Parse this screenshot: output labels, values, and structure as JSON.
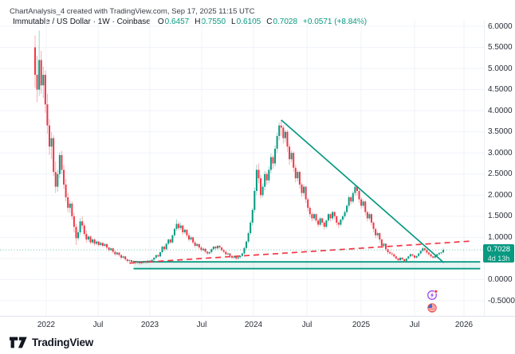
{
  "attribution": "ChartAnalysis_4 created with TradingView.com, Sep 17, 2025 11:15 UTC",
  "legend": {
    "symbol": "Immutable / US Dollar · 1W · Coinbase",
    "o_label": "O",
    "o_value": "0.6457",
    "h_label": "H",
    "h_value": "0.7550",
    "l_label": "L",
    "l_value": "0.6105",
    "c_label": "C",
    "c_value": "0.7028",
    "change": "+0.0571 (+8.84%)"
  },
  "price_label": {
    "price": "0.7028",
    "countdown": "4d 13h"
  },
  "axis": {
    "price_ticks": [
      "6.0000",
      "5.5000",
      "5.0000",
      "4.5000",
      "4.0000",
      "3.5000",
      "3.0000",
      "2.5000",
      "2.0000",
      "1.5000",
      "1.0000",
      "0.5000",
      "0.0000",
      "-0.5000"
    ],
    "time_ticks": [
      "2022",
      "Jul",
      "2023",
      "Jul",
      "2024",
      "Jul",
      "2025",
      "Jul",
      "2026"
    ]
  },
  "logo": {
    "text": "TradingView"
  },
  "icons": {
    "lightning": "lightning-event-icon",
    "us_flag": "us-flag-event-icon"
  },
  "colors": {
    "up": "#089981",
    "down": "#f23645",
    "trendline": "#089981",
    "dashed_line": "#f23645",
    "band": "#089981",
    "price_line": "#089981",
    "price_label_bg": "#089981",
    "grid": "#f0f3fa",
    "purple": "#9c4df0",
    "flag_red": "#ef5350",
    "flag_blue": "#3b6fd6"
  },
  "chart_data": {
    "type": "candlestick",
    "title": "Immutable / US Dollar",
    "interval": "1W",
    "exchange": "Coinbase",
    "ohlc_display": {
      "open": 0.6457,
      "high": 0.755,
      "low": 0.6105,
      "close": 0.7028,
      "change": "+0.0571",
      "change_pct": "+8.84%"
    },
    "x_axis_ticks": [
      "2022",
      "Jul",
      "2023",
      "Jul",
      "2024",
      "Jul",
      "2025",
      "Jul",
      "2026"
    ],
    "y_axis": {
      "min": -0.5,
      "max": 6.0,
      "step": 0.5
    },
    "grid": true,
    "candles": [
      [
        5.5,
        5.78,
        4.55,
        4.85
      ],
      [
        4.85,
        5.3,
        4.2,
        4.5
      ],
      [
        4.5,
        5.9,
        4.35,
        5.2
      ],
      [
        5.2,
        5.42,
        4.4,
        4.6
      ],
      [
        4.6,
        5.05,
        4.3,
        4.85
      ],
      [
        4.85,
        4.95,
        3.95,
        4.15
      ],
      [
        4.15,
        4.4,
        3.45,
        3.65
      ],
      [
        3.65,
        3.8,
        2.95,
        3.15
      ],
      [
        3.15,
        3.5,
        2.85,
        3.35
      ],
      [
        3.35,
        3.42,
        2.45,
        2.55
      ],
      [
        2.55,
        2.8,
        2.05,
        2.2
      ],
      [
        2.2,
        2.6,
        2.08,
        2.5
      ],
      [
        2.5,
        3.02,
        2.4,
        2.95
      ],
      [
        2.95,
        3.05,
        2.5,
        2.6
      ],
      [
        2.6,
        2.72,
        2.15,
        2.25
      ],
      [
        2.25,
        2.38,
        1.85,
        1.95
      ],
      [
        1.95,
        2.05,
        1.6,
        1.7
      ],
      [
        1.7,
        1.88,
        1.58,
        1.8
      ],
      [
        1.8,
        1.85,
        1.42,
        1.5
      ],
      [
        1.5,
        1.58,
        1.12,
        1.25
      ],
      [
        1.25,
        1.32,
        0.82,
        0.98
      ],
      [
        0.98,
        1.18,
        0.92,
        1.12
      ],
      [
        1.12,
        1.46,
        1.06,
        1.38
      ],
      [
        1.38,
        1.5,
        1.2,
        1.28
      ],
      [
        1.28,
        1.33,
        1.02,
        1.08
      ],
      [
        1.08,
        1.16,
        0.88,
        0.95
      ],
      [
        0.95,
        1.06,
        0.9,
        1.02
      ],
      [
        1.02,
        1.05,
        0.84,
        0.88
      ],
      [
        0.88,
        0.99,
        0.84,
        0.95
      ],
      [
        0.95,
        0.98,
        0.8,
        0.85
      ],
      [
        0.85,
        0.93,
        0.81,
        0.9
      ],
      [
        0.9,
        0.92,
        0.78,
        0.82
      ],
      [
        0.82,
        0.9,
        0.79,
        0.87
      ],
      [
        0.87,
        0.89,
        0.76,
        0.8
      ],
      [
        0.8,
        0.87,
        0.77,
        0.84
      ],
      [
        0.84,
        0.86,
        0.72,
        0.76
      ],
      [
        0.76,
        0.79,
        0.66,
        0.7
      ],
      [
        0.7,
        0.76,
        0.67,
        0.74
      ],
      [
        0.74,
        0.76,
        0.62,
        0.66
      ],
      [
        0.66,
        0.69,
        0.56,
        0.6
      ],
      [
        0.6,
        0.66,
        0.57,
        0.64
      ],
      [
        0.64,
        0.66,
        0.54,
        0.58
      ],
      [
        0.58,
        0.6,
        0.48,
        0.52
      ],
      [
        0.52,
        0.57,
        0.49,
        0.55
      ],
      [
        0.55,
        0.56,
        0.44,
        0.48
      ],
      [
        0.48,
        0.5,
        0.4,
        0.44
      ],
      [
        0.44,
        0.48,
        0.41,
        0.46
      ],
      [
        0.46,
        0.47,
        0.38,
        0.42
      ],
      [
        0.42,
        0.46,
        0.39,
        0.44
      ],
      [
        0.44,
        0.45,
        0.36,
        0.4
      ],
      [
        0.4,
        0.44,
        0.37,
        0.43
      ],
      [
        0.43,
        0.44,
        0.35,
        0.39
      ],
      [
        0.39,
        0.43,
        0.36,
        0.42
      ],
      [
        0.42,
        0.45,
        0.39,
        0.44
      ],
      [
        0.44,
        0.45,
        0.37,
        0.41
      ],
      [
        0.41,
        0.46,
        0.38,
        0.45
      ],
      [
        0.45,
        0.46,
        0.4,
        0.43
      ],
      [
        0.43,
        0.48,
        0.41,
        0.47
      ],
      [
        0.47,
        0.53,
        0.44,
        0.52
      ],
      [
        0.52,
        0.59,
        0.48,
        0.58
      ],
      [
        0.58,
        0.6,
        0.52,
        0.55
      ],
      [
        0.55,
        0.66,
        0.53,
        0.65
      ],
      [
        0.65,
        0.8,
        0.62,
        0.78
      ],
      [
        0.78,
        0.81,
        0.68,
        0.72
      ],
      [
        0.72,
        0.87,
        0.69,
        0.85
      ],
      [
        0.85,
        0.97,
        0.81,
        0.95
      ],
      [
        0.95,
        0.98,
        0.84,
        0.88
      ],
      [
        0.88,
        1.07,
        0.85,
        1.05
      ],
      [
        1.05,
        1.23,
        1.0,
        1.2
      ],
      [
        1.2,
        1.43,
        1.15,
        1.32
      ],
      [
        1.32,
        1.38,
        1.16,
        1.22
      ],
      [
        1.22,
        1.35,
        1.18,
        1.28
      ],
      [
        1.28,
        1.3,
        1.06,
        1.12
      ],
      [
        1.12,
        1.22,
        1.08,
        1.18
      ],
      [
        1.18,
        1.2,
        1.0,
        1.05
      ],
      [
        1.05,
        1.1,
        0.9,
        0.95
      ],
      [
        0.95,
        1.04,
        0.92,
        1.0
      ],
      [
        1.0,
        1.02,
        0.84,
        0.88
      ],
      [
        0.88,
        0.92,
        0.76,
        0.8
      ],
      [
        0.8,
        0.87,
        0.77,
        0.84
      ],
      [
        0.84,
        0.86,
        0.72,
        0.76
      ],
      [
        0.76,
        0.79,
        0.66,
        0.7
      ],
      [
        0.7,
        0.76,
        0.67,
        0.73
      ],
      [
        0.73,
        0.75,
        0.62,
        0.66
      ],
      [
        0.66,
        0.68,
        0.58,
        0.62
      ],
      [
        0.62,
        0.67,
        0.59,
        0.65
      ],
      [
        0.65,
        0.74,
        0.62,
        0.72
      ],
      [
        0.72,
        0.8,
        0.69,
        0.78
      ],
      [
        0.78,
        0.8,
        0.7,
        0.74
      ],
      [
        0.74,
        0.82,
        0.71,
        0.8
      ],
      [
        0.8,
        0.82,
        0.72,
        0.76
      ],
      [
        0.76,
        0.78,
        0.66,
        0.7
      ],
      [
        0.7,
        0.72,
        0.62,
        0.66
      ],
      [
        0.66,
        0.68,
        0.56,
        0.6
      ],
      [
        0.6,
        0.64,
        0.57,
        0.62
      ],
      [
        0.62,
        0.63,
        0.52,
        0.56
      ],
      [
        0.56,
        0.58,
        0.48,
        0.52
      ],
      [
        0.52,
        0.57,
        0.49,
        0.55
      ],
      [
        0.55,
        0.56,
        0.46,
        0.5
      ],
      [
        0.5,
        0.55,
        0.47,
        0.53
      ],
      [
        0.53,
        0.58,
        0.5,
        0.56
      ],
      [
        0.56,
        0.64,
        0.53,
        0.62
      ],
      [
        0.62,
        0.78,
        0.59,
        0.75
      ],
      [
        0.75,
        0.93,
        0.71,
        0.9
      ],
      [
        0.9,
        1.14,
        0.86,
        1.1
      ],
      [
        1.1,
        1.4,
        1.05,
        1.35
      ],
      [
        1.35,
        1.7,
        1.28,
        1.65
      ],
      [
        1.65,
        2.18,
        1.58,
        2.1
      ],
      [
        2.1,
        2.72,
        2.0,
        2.6
      ],
      [
        2.6,
        2.75,
        2.28,
        2.4
      ],
      [
        2.4,
        2.48,
        1.92,
        2.0
      ],
      [
        2.0,
        2.28,
        1.95,
        2.2
      ],
      [
        2.2,
        2.58,
        2.12,
        2.5
      ],
      [
        2.5,
        2.55,
        2.25,
        2.35
      ],
      [
        2.35,
        2.68,
        2.28,
        2.6
      ],
      [
        2.6,
        2.98,
        2.52,
        2.9
      ],
      [
        2.9,
        2.95,
        2.62,
        2.75
      ],
      [
        2.75,
        3.18,
        2.68,
        3.1
      ],
      [
        3.1,
        3.48,
        3.0,
        3.4
      ],
      [
        3.4,
        3.72,
        3.3,
        3.65
      ],
      [
        3.65,
        3.78,
        3.4,
        3.6
      ],
      [
        3.6,
        3.66,
        3.22,
        3.35
      ],
      [
        3.35,
        3.55,
        3.25,
        3.5
      ],
      [
        3.5,
        3.54,
        3.02,
        3.15
      ],
      [
        3.15,
        3.22,
        2.72,
        2.85
      ],
      [
        2.85,
        3.06,
        2.78,
        3.0
      ],
      [
        3.0,
        3.04,
        2.55,
        2.65
      ],
      [
        2.65,
        2.72,
        2.3,
        2.4
      ],
      [
        2.4,
        2.6,
        2.32,
        2.55
      ],
      [
        2.55,
        2.58,
        2.16,
        2.25
      ],
      [
        2.25,
        2.3,
        1.96,
        2.05
      ],
      [
        2.05,
        2.25,
        1.98,
        2.2
      ],
      [
        2.2,
        2.22,
        1.82,
        1.9
      ],
      [
        1.9,
        1.94,
        1.62,
        1.7
      ],
      [
        1.7,
        1.74,
        1.48,
        1.55
      ],
      [
        1.55,
        1.6,
        1.38,
        1.45
      ],
      [
        1.45,
        1.58,
        1.4,
        1.55
      ],
      [
        1.55,
        1.57,
        1.34,
        1.4
      ],
      [
        1.4,
        1.44,
        1.24,
        1.3
      ],
      [
        1.3,
        1.48,
        1.26,
        1.45
      ],
      [
        1.45,
        1.47,
        1.28,
        1.35
      ],
      [
        1.35,
        1.38,
        1.18,
        1.25
      ],
      [
        1.25,
        1.43,
        1.21,
        1.4
      ],
      [
        1.4,
        1.58,
        1.35,
        1.55
      ],
      [
        1.55,
        1.57,
        1.38,
        1.45
      ],
      [
        1.45,
        1.63,
        1.4,
        1.6
      ],
      [
        1.6,
        1.62,
        1.42,
        1.5
      ],
      [
        1.5,
        1.52,
        1.28,
        1.35
      ],
      [
        1.35,
        1.38,
        1.22,
        1.3
      ],
      [
        1.3,
        1.45,
        1.26,
        1.42
      ],
      [
        1.42,
        1.53,
        1.36,
        1.5
      ],
      [
        1.5,
        1.64,
        1.45,
        1.6
      ],
      [
        1.6,
        1.78,
        1.54,
        1.75
      ],
      [
        1.75,
        1.99,
        1.68,
        1.95
      ],
      [
        1.95,
        1.98,
        1.78,
        1.85
      ],
      [
        1.85,
        2.09,
        1.8,
        2.05
      ],
      [
        2.05,
        2.24,
        1.98,
        2.2
      ],
      [
        2.2,
        2.23,
        2.0,
        2.1
      ],
      [
        2.1,
        2.14,
        1.82,
        1.9
      ],
      [
        1.9,
        1.95,
        1.68,
        1.75
      ],
      [
        1.75,
        1.9,
        1.7,
        1.85
      ],
      [
        1.85,
        1.88,
        1.52,
        1.6
      ],
      [
        1.6,
        1.64,
        1.38,
        1.45
      ],
      [
        1.45,
        1.6,
        1.4,
        1.55
      ],
      [
        1.55,
        1.57,
        1.28,
        1.35
      ],
      [
        1.35,
        1.38,
        1.12,
        1.2
      ],
      [
        1.2,
        1.23,
        0.98,
        1.05
      ],
      [
        1.05,
        1.14,
        1.0,
        1.1
      ],
      [
        1.1,
        1.12,
        0.88,
        0.95
      ],
      [
        0.95,
        0.97,
        0.74,
        0.8
      ],
      [
        0.8,
        0.88,
        0.76,
        0.85
      ],
      [
        0.85,
        0.86,
        0.68,
        0.72
      ],
      [
        0.72,
        0.74,
        0.6,
        0.65
      ],
      [
        0.65,
        0.69,
        0.59,
        0.62
      ],
      [
        0.62,
        0.66,
        0.56,
        0.6
      ],
      [
        0.6,
        0.62,
        0.52,
        0.55
      ],
      [
        0.55,
        0.57,
        0.47,
        0.5
      ],
      [
        0.5,
        0.52,
        0.43,
        0.46
      ],
      [
        0.46,
        0.53,
        0.44,
        0.52
      ],
      [
        0.52,
        0.53,
        0.45,
        0.48
      ],
      [
        0.48,
        0.49,
        0.42,
        0.44
      ],
      [
        0.44,
        0.51,
        0.42,
        0.5
      ],
      [
        0.5,
        0.56,
        0.47,
        0.55
      ],
      [
        0.55,
        0.62,
        0.52,
        0.6
      ],
      [
        0.6,
        0.61,
        0.54,
        0.57
      ],
      [
        0.57,
        0.58,
        0.49,
        0.52
      ],
      [
        0.52,
        0.57,
        0.5,
        0.56
      ],
      [
        0.56,
        0.63,
        0.53,
        0.62
      ],
      [
        0.62,
        0.7,
        0.59,
        0.68
      ],
      [
        0.68,
        0.78,
        0.65,
        0.74
      ],
      [
        0.74,
        0.76,
        0.66,
        0.7
      ],
      [
        0.7,
        0.72,
        0.6,
        0.64
      ],
      [
        0.64,
        0.66,
        0.56,
        0.6
      ],
      [
        0.6,
        0.62,
        0.52,
        0.55
      ],
      [
        0.55,
        0.57,
        0.49,
        0.52
      ],
      [
        0.52,
        0.58,
        0.5,
        0.56
      ],
      [
        0.56,
        0.62,
        0.53,
        0.6
      ],
      [
        0.6,
        0.65,
        0.57,
        0.63
      ],
      [
        0.63,
        0.66,
        0.59,
        0.6457
      ],
      [
        0.6457,
        0.755,
        0.6105,
        0.7028
      ]
    ],
    "drawings": {
      "descending_trendline": {
        "from": {
          "index": 120,
          "price": 3.78
        },
        "to": {
          "index": 199.3,
          "price": 0.4
        },
        "style": "solid"
      },
      "rising_dashed_trendline": {
        "from": {
          "index": 46,
          "price": 0.39
        },
        "to": {
          "index": 212,
          "price": 0.91
        },
        "style": "dashed"
      },
      "support_band": {
        "from_index": 48,
        "to_index": 217,
        "top_price": 0.42,
        "bottom_price": 0.26
      },
      "current_price_line": {
        "price": 0.7028
      }
    }
  }
}
